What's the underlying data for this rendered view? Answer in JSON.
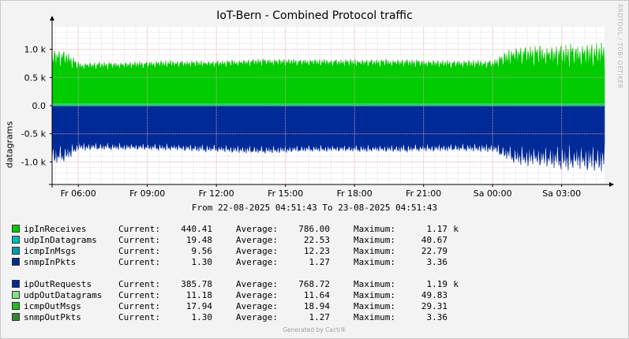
{
  "title": "IoT-Bern - Combined Protocol traffic",
  "side_text": "RRDTOOL / TOBI OETIKER",
  "range_text": "From 22-08-2025 04:51:43 To 23-08-2025 04:51:43",
  "footer": "Generated by Cacti®",
  "legend_labels": {
    "current": "Current:",
    "average": "Average:",
    "maximum": "Maximum:"
  },
  "colors": {
    "plot_bg": "#ffffff",
    "grid_major": "#e6a3a3",
    "grid_minor": "#e0e0e0",
    "in_green": "#00cc00",
    "out_blue": "#002a97",
    "zero_line": "#00a0c0"
  },
  "chart_data": {
    "type": "area",
    "title": "IoT-Bern - Combined Protocol traffic",
    "ylabel": "datagrams",
    "xlabel": "",
    "ylim": [
      -1400,
      1400
    ],
    "yticks": [
      "1.0 k",
      "0.5 k",
      "0.0",
      "-0.5 k",
      "-1.0 k"
    ],
    "ytick_values": [
      1000,
      500,
      0,
      -500,
      -1000
    ],
    "xticks": [
      "Fr 06:00",
      "Fr 09:00",
      "Fr 12:00",
      "Fr 15:00",
      "Fr 18:00",
      "Fr 21:00",
      "Sa 00:00",
      "Sa 03:00"
    ],
    "x_start_hour": 4.862,
    "x_end_hour": 28.862,
    "xtick_hours": [
      6,
      9,
      12,
      15,
      18,
      21,
      24,
      27
    ],
    "grid": true,
    "series_profile": {
      "hours": [
        4.86,
        5.5,
        6,
        8,
        10,
        12,
        14,
        16,
        18,
        20,
        22,
        24,
        25,
        26,
        27,
        28,
        28.86
      ],
      "in_base": [
        480,
        560,
        560,
        590,
        610,
        630,
        640,
        640,
        630,
        620,
        600,
        580,
        560,
        520,
        480,
        440,
        440
      ],
      "in_peak": [
        1050,
        980,
        780,
        780,
        810,
        800,
        840,
        830,
        830,
        830,
        810,
        820,
        1080,
        1080,
        1100,
        1130,
        1130
      ],
      "out_base": [
        -520,
        -560,
        -570,
        -600,
        -610,
        -620,
        -640,
        -640,
        -640,
        -620,
        -610,
        -580,
        -560,
        -520,
        -480,
        -430,
        -430
      ],
      "out_peak": [
        -1080,
        -1000,
        -800,
        -790,
        -800,
        -830,
        -860,
        -820,
        -820,
        -830,
        -810,
        -830,
        -1060,
        -1100,
        -1150,
        -1190,
        -1190
      ]
    },
    "series": [
      {
        "name": "ipInReceives",
        "color": "#00cc00",
        "current": "440.41",
        "average": "786.00",
        "maximum": "1.17",
        "max_unit": "k"
      },
      {
        "name": "udpInDatagrams",
        "color": "#00bbbb",
        "current": "19.48",
        "average": "22.53",
        "maximum": "40.67",
        "max_unit": ""
      },
      {
        "name": "icmpInMsgs",
        "color": "#0099aa",
        "current": "9.56",
        "average": "12.23",
        "maximum": "22.79",
        "max_unit": ""
      },
      {
        "name": "snmpInPkts",
        "color": "#002a97",
        "current": "1.30",
        "average": "1.27",
        "maximum": "3.36",
        "max_unit": ""
      },
      {
        "name": "ipOutRequests",
        "color": "#002a97",
        "current": "385.78",
        "average": "768.72",
        "maximum": "1.19",
        "max_unit": "k"
      },
      {
        "name": "udpOutDatagrams",
        "color": "#88dd88",
        "current": "11.18",
        "average": "11.64",
        "maximum": "49.83",
        "max_unit": ""
      },
      {
        "name": "icmpOutMsgs",
        "color": "#22bb22",
        "current": "17.94",
        "average": "18.94",
        "maximum": "29.31",
        "max_unit": ""
      },
      {
        "name": "snmpOutPkts",
        "color": "#338833",
        "current": "1.30",
        "average": "1.27",
        "maximum": "3.36",
        "max_unit": ""
      }
    ]
  }
}
